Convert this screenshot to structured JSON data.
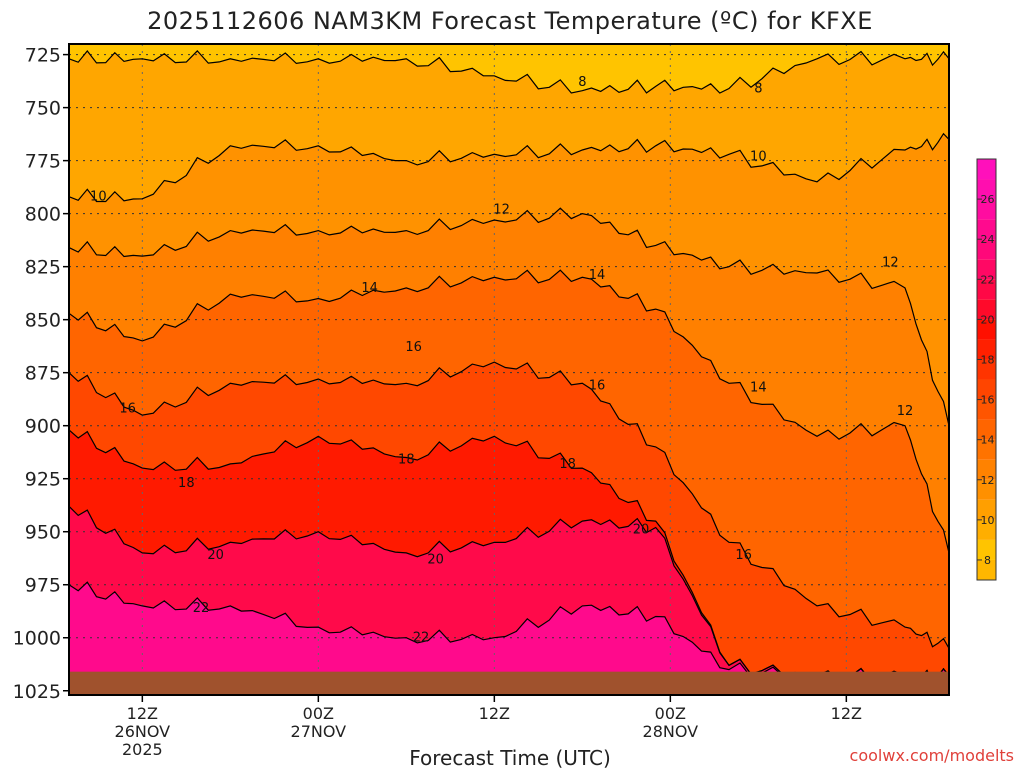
{
  "chart_data": {
    "type": "contour",
    "title": "2025112606 NAM3KM Forecast Temperature (ºC) for KFXE",
    "xlabel": "Forecast Time (UTC)",
    "credit": "coolwx.com/modelts",
    "y_levels": [
      725,
      750,
      775,
      800,
      825,
      850,
      875,
      900,
      925,
      950,
      975,
      1000,
      1025
    ],
    "ylim": [
      720,
      1027
    ],
    "xlim_hours": [
      7,
      67
    ],
    "x_ticks": [
      {
        "hour": 12,
        "label": "12Z",
        "sub1": "26NOV",
        "sub2": "2025"
      },
      {
        "hour": 24,
        "label": "00Z",
        "sub1": "27NOV",
        "sub2": ""
      },
      {
        "hour": 36,
        "label": "12Z",
        "sub1": "",
        "sub2": ""
      },
      {
        "hour": 48,
        "label": "00Z",
        "sub1": "28NOV",
        "sub2": ""
      },
      {
        "hour": 60,
        "label": "12Z",
        "sub1": "",
        "sub2": ""
      }
    ],
    "contour_hours": [
      7,
      12,
      18,
      24,
      30,
      36,
      42,
      47,
      52,
      58,
      64,
      67
    ],
    "contours": [
      {
        "value": 8,
        "label_at": [
          [
            42,
            738
          ],
          [
            54,
            741
          ]
        ],
        "pressures": [
          727,
          727,
          727,
          727,
          727,
          735,
          742,
          740,
          741,
          727,
          727,
          727
        ]
      },
      {
        "value": 10,
        "label_at": [
          [
            9,
            792
          ],
          [
            54,
            773
          ]
        ],
        "pressures": [
          792,
          793,
          768,
          768,
          775,
          772,
          770,
          768,
          772,
          785,
          770,
          765
        ]
      },
      {
        "value": 12,
        "label_at": [
          [
            36.5,
            798
          ],
          [
            63,
            823
          ],
          [
            64,
            893
          ]
        ],
        "pressures": [
          816,
          820,
          808,
          808,
          808,
          803,
          800,
          815,
          825,
          828,
          835,
          900
        ]
      },
      {
        "value": 14,
        "label_at": [
          [
            27.5,
            835
          ],
          [
            43,
            829
          ],
          [
            54,
            882
          ]
        ],
        "pressures": [
          847,
          860,
          838,
          840,
          835,
          830,
          830,
          845,
          880,
          905,
          900,
          960
        ]
      },
      {
        "value": 16,
        "label_at": [
          [
            11,
            892
          ],
          [
            30.5,
            863
          ],
          [
            43,
            881
          ],
          [
            53,
            961
          ]
        ],
        "pressures": [
          875,
          895,
          880,
          878,
          880,
          870,
          880,
          910,
          955,
          985,
          995,
          1005
        ]
      },
      {
        "value": 18,
        "label_at": [
          [
            15,
            927
          ],
          [
            30,
            916
          ],
          [
            41,
            918
          ]
        ],
        "pressures": [
          902,
          920,
          918,
          905,
          915,
          905,
          920,
          945,
          1013,
          1018,
          1018,
          1018
        ]
      },
      {
        "value": 20,
        "label_at": [
          [
            17,
            961
          ],
          [
            32,
            963
          ],
          [
            46,
            949
          ]
        ],
        "pressures": [
          938,
          960,
          955,
          950,
          960,
          955,
          945,
          948,
          1013,
          1018,
          1018,
          1018
        ]
      },
      {
        "value": 22,
        "label_at": [
          [
            16,
            986
          ],
          [
            31,
            1000
          ]
        ],
        "pressures": [
          975,
          985,
          985,
          995,
          1000,
          1000,
          985,
          990,
          1015,
          1018,
          1018,
          1018
        ]
      }
    ],
    "colorbar": {
      "ticks": [
        8,
        10,
        12,
        14,
        16,
        18,
        20,
        22,
        24,
        26
      ],
      "bands": [
        {
          "lo": 7,
          "hi": 8,
          "color": "#ffb700"
        },
        {
          "lo": 8,
          "hi": 9,
          "color": "#ffc400"
        },
        {
          "lo": 9,
          "hi": 10,
          "color": "#ffae00"
        },
        {
          "lo": 10,
          "hi": 11,
          "color": "#ff9f00"
        },
        {
          "lo": 11,
          "hi": 12,
          "color": "#ff9000"
        },
        {
          "lo": 12,
          "hi": 13,
          "color": "#ff8200"
        },
        {
          "lo": 13,
          "hi": 14,
          "color": "#ff7300"
        },
        {
          "lo": 14,
          "hi": 15,
          "color": "#ff6500"
        },
        {
          "lo": 15,
          "hi": 16,
          "color": "#ff5500"
        },
        {
          "lo": 16,
          "hi": 17,
          "color": "#ff4500"
        },
        {
          "lo": 17,
          "hi": 18,
          "color": "#ff3400"
        },
        {
          "lo": 18,
          "hi": 19,
          "color": "#ff2000"
        },
        {
          "lo": 19,
          "hi": 20,
          "color": "#ff1000"
        },
        {
          "lo": 20,
          "hi": 21,
          "color": "#ff0a2a"
        },
        {
          "lo": 21,
          "hi": 22,
          "color": "#ff0846"
        },
        {
          "lo": 22,
          "hi": 23,
          "color": "#ff0864"
        },
        {
          "lo": 23,
          "hi": 24,
          "color": "#ff087a"
        },
        {
          "lo": 24,
          "hi": 25,
          "color": "#ff0a8e"
        },
        {
          "lo": 25,
          "hi": 26,
          "color": "#ff0ca0"
        },
        {
          "lo": 26,
          "hi": 27,
          "color": "#ff0eaf"
        },
        {
          "lo": 27,
          "hi": 28,
          "color": "#ff10bb"
        }
      ]
    },
    "fill_colors": {
      "below_8": "#ffc400",
      "8_to_10": "#ffa600",
      "10_to_12": "#ff9200",
      "12_to_14": "#ff8000",
      "14_to_16": "#ff6500",
      "16_to_18": "#ff4800",
      "18_to_20": "#ff1a00",
      "20_to_22": "#ff0a4a",
      "above_22": "#ff0a8c"
    },
    "surface_color": "#a0522d",
    "surface_pressure": 1016
  }
}
